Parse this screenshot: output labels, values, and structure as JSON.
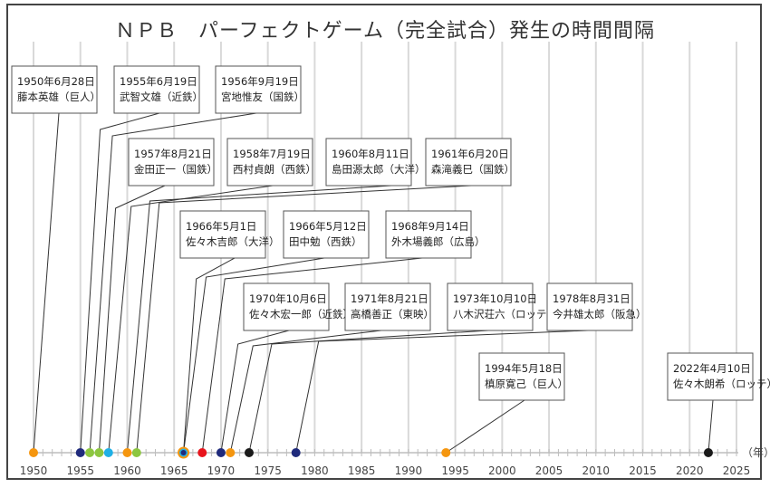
{
  "chart_data": {
    "type": "timeline",
    "title": "ＮＰＢ　パーフェクトゲーム（完全試合）発生の時間間隔",
    "xlabel": "（年）",
    "xlim": [
      1950,
      2025
    ],
    "x_ticks": [
      1950,
      1955,
      1960,
      1965,
      1970,
      1975,
      1980,
      1985,
      1990,
      1995,
      2000,
      2005,
      2010,
      2015,
      2020,
      2025
    ],
    "grid": true,
    "team_colors": {
      "巨人": "#f5960f",
      "近鉄": "#1f2a7c",
      "国鉄": "#8cc63f",
      "西鉄": "#1fb0e6",
      "大洋": "#f5960f",
      "広島": "#e8141c",
      "東映": "#f5960f",
      "ロッテ": "#1a1a1a",
      "阪急": "#1f2a7c"
    },
    "events": [
      {
        "year": 1950,
        "date": "1950年6月28日",
        "pitcher": "藤本英雄（巨人）",
        "team": "巨人"
      },
      {
        "year": 1955,
        "date": "1955年6月19日",
        "pitcher": "武智文雄（近鉄）",
        "team": "近鉄"
      },
      {
        "year": 1956,
        "date": "1956年9月19日",
        "pitcher": "宮地惟友（国鉄）",
        "team": "国鉄"
      },
      {
        "year": 1957,
        "date": "1957年8月21日",
        "pitcher": "金田正一（国鉄）",
        "team": "国鉄"
      },
      {
        "year": 1958,
        "date": "1958年7月19日",
        "pitcher": "西村貞朗（西鉄）",
        "team": "西鉄"
      },
      {
        "year": 1960,
        "date": "1960年8月11日",
        "pitcher": "島田源太郎（大洋）",
        "team": "大洋"
      },
      {
        "year": 1961,
        "date": "1961年6月20日",
        "pitcher": "森滝義巳（国鉄）",
        "team": "国鉄"
      },
      {
        "year": 1966,
        "date": "1966年5月1日",
        "pitcher": "佐々木吉郎（大洋）",
        "team": "大洋"
      },
      {
        "year": 1966,
        "date": "1966年5月12日",
        "pitcher": "田中勉（西鉄）",
        "team": "西鉄"
      },
      {
        "year": 1968,
        "date": "1968年9月14日",
        "pitcher": "外木場義郎（広島）",
        "team": "広島"
      },
      {
        "year": 1970,
        "date": "1970年10月6日",
        "pitcher": "佐々木宏一郎（近鉄）",
        "team": "近鉄"
      },
      {
        "year": 1971,
        "date": "1971年8月21日",
        "pitcher": "高橋善正（東映）",
        "team": "東映"
      },
      {
        "year": 1973,
        "date": "1973年10月10日",
        "pitcher": "八木沢荘六（ロッテ）",
        "team": "ロッテ"
      },
      {
        "year": 1978,
        "date": "1978年8月31日",
        "pitcher": "今井雄太郎（阪急）",
        "team": "阪急"
      },
      {
        "year": 1994,
        "date": "1994年5月18日",
        "pitcher": "槙原寛己（巨人）",
        "team": "巨人"
      },
      {
        "year": 2022,
        "date": "2022年4月10日",
        "pitcher": "佐々木朗希（ロッテ）",
        "team": "ロッテ"
      }
    ]
  }
}
